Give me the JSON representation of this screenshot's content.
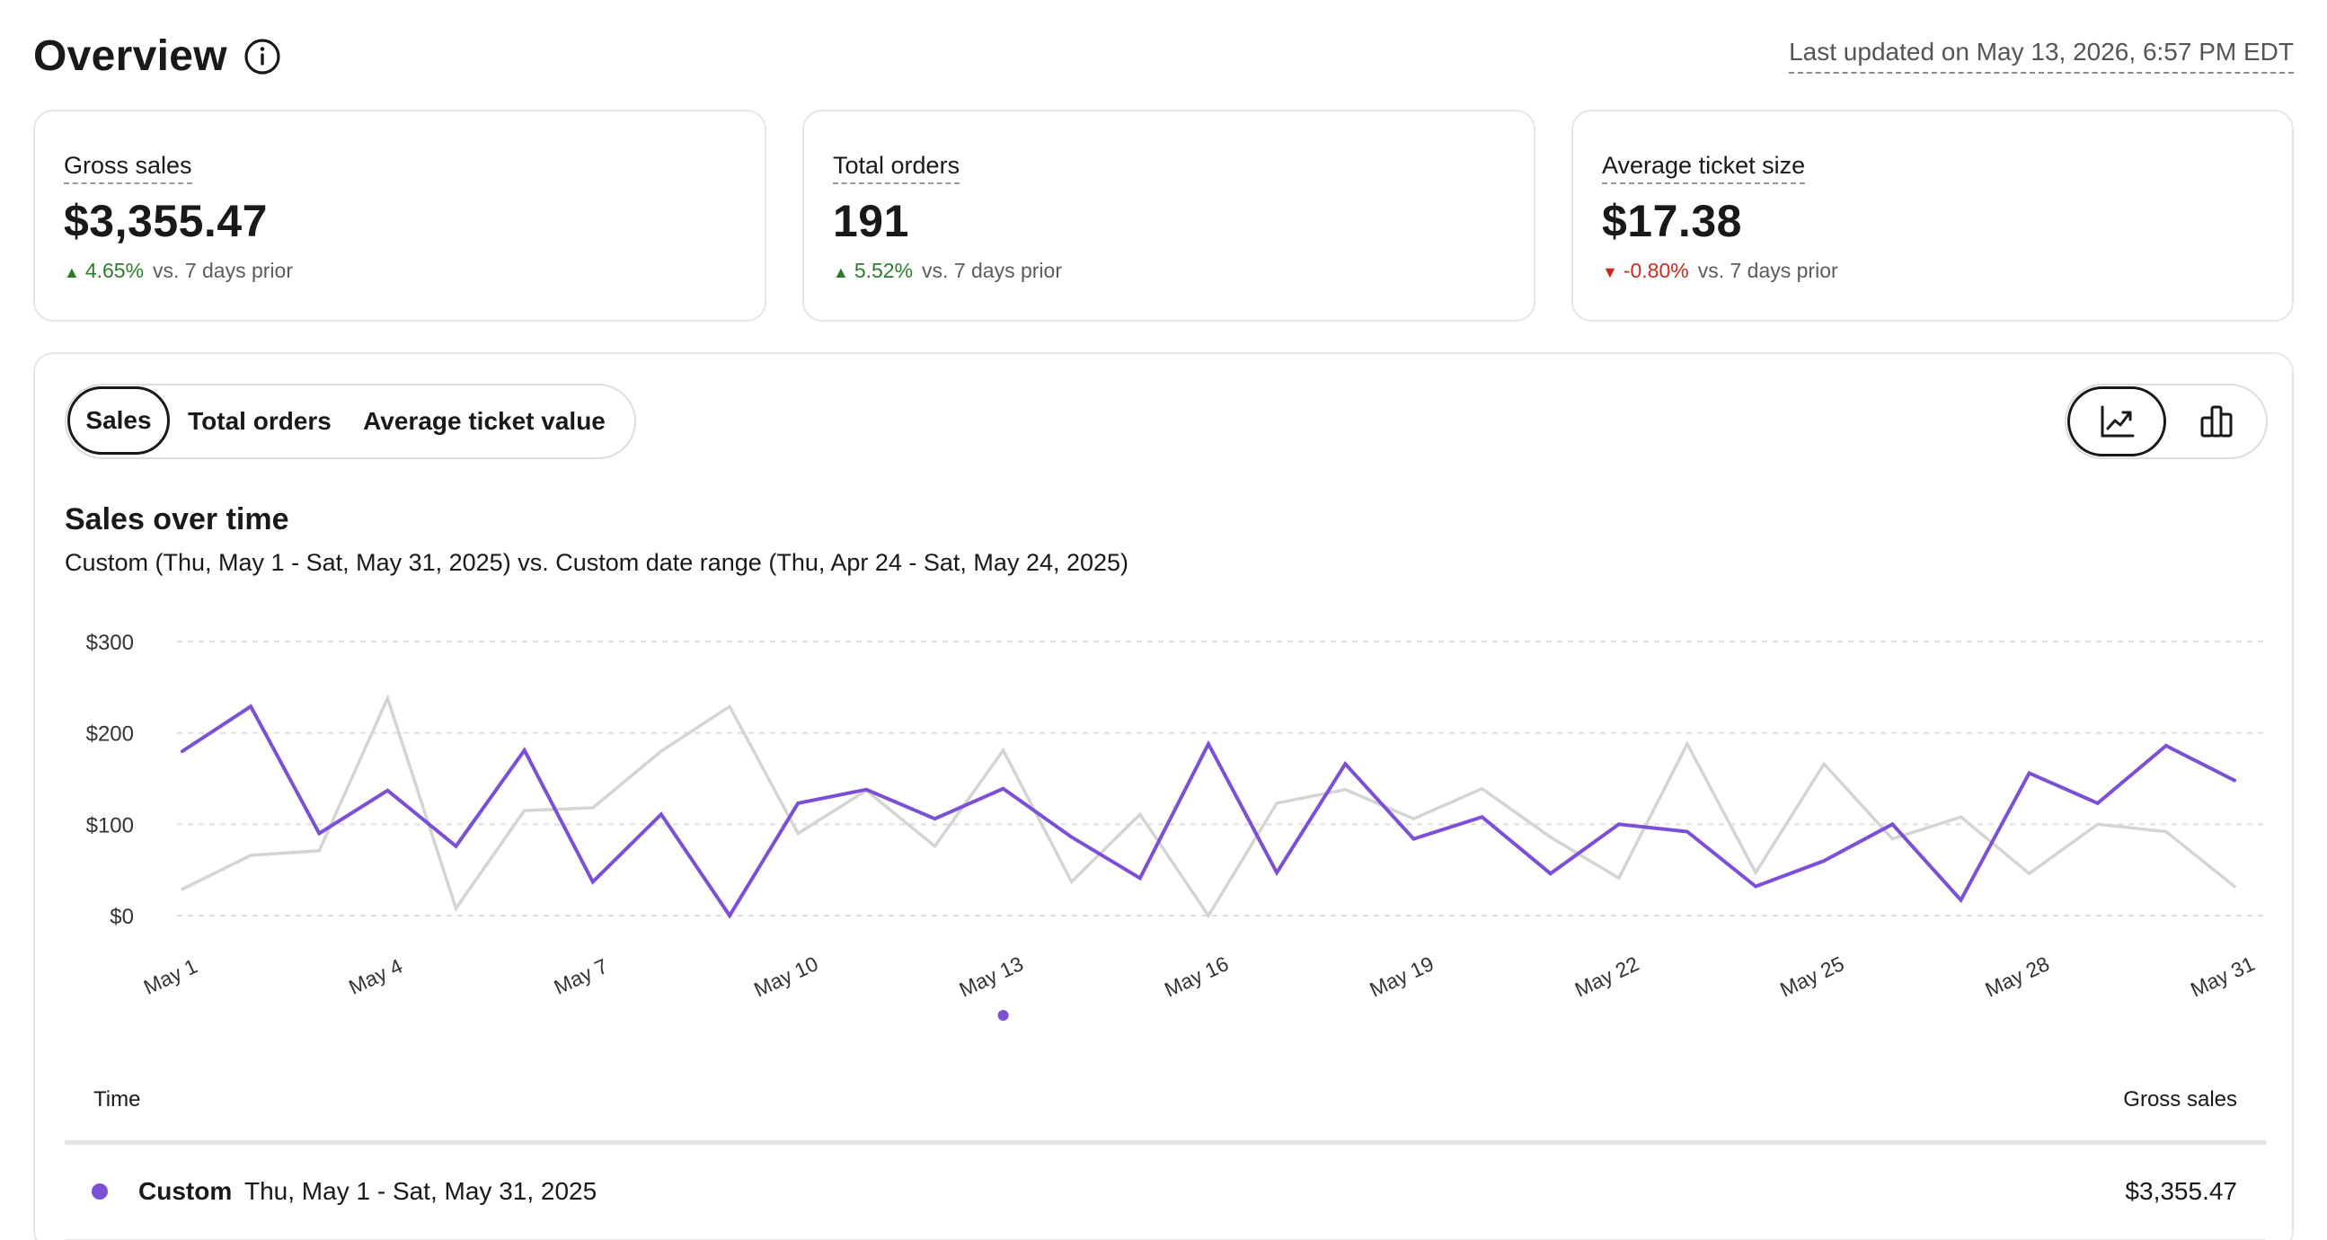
{
  "header": {
    "title": "Overview",
    "last_updated": "Last updated on May 13, 2026, 6:57 PM EDT"
  },
  "kpis": [
    {
      "label": "Gross sales",
      "value": "$3,355.47",
      "delta": "4.65%",
      "direction": "up",
      "compare": "vs. 7 days prior"
    },
    {
      "label": "Total orders",
      "value": "191",
      "delta": "5.52%",
      "direction": "up",
      "compare": "vs. 7 days prior"
    },
    {
      "label": "Average ticket size",
      "value": "$17.38",
      "delta": "-0.80%",
      "direction": "down",
      "compare": "vs. 7 days prior"
    }
  ],
  "tabs": {
    "sales": "Sales",
    "total_orders": "Total orders",
    "average_ticket_value": "Average ticket value",
    "active": "Sales"
  },
  "view_toggle": {
    "line_icon": "line-chart-icon",
    "bar_icon": "bar-chart-icon",
    "active": "line"
  },
  "chart": {
    "title": "Sales over time",
    "subtitle": "Custom (Thu, May 1 - Sat, May 31, 2025) vs. Custom date range (Thu, Apr 24 - Sat, May 24, 2025)"
  },
  "chart_data": {
    "type": "line",
    "x": [
      "May 1",
      "May 2",
      "May 3",
      "May 4",
      "May 5",
      "May 6",
      "May 7",
      "May 8",
      "May 9",
      "May 10",
      "May 11",
      "May 12",
      "May 13",
      "May 14",
      "May 15",
      "May 16",
      "May 17",
      "May 18",
      "May 19",
      "May 20",
      "May 21",
      "May 22",
      "May 23",
      "May 24",
      "May 25",
      "May 26",
      "May 27",
      "May 28",
      "May 29",
      "May 30",
      "May 31"
    ],
    "x_tick_labels": [
      "May 1",
      "May 4",
      "May 7",
      "May 10",
      "May 13",
      "May 16",
      "May 19",
      "May 22",
      "May 25",
      "May 28",
      "May 31"
    ],
    "highlighted_tick": "May 13",
    "y_tick_labels": [
      "$0",
      "$100",
      "$200",
      "$300"
    ],
    "ylim": [
      0,
      300
    ],
    "grid": true,
    "colors": {
      "current": "#7b4fd6",
      "prior": "#d4d4d4",
      "grid": "#dedede"
    },
    "series": [
      {
        "key": "current",
        "values": [
          180,
          229,
          90,
          137,
          76,
          181,
          37,
          111,
          0,
          123,
          138,
          106,
          139,
          86,
          41,
          188,
          47,
          166,
          84,
          108,
          46,
          100,
          92,
          32,
          60,
          100,
          17,
          156,
          123,
          186,
          148
        ]
      },
      {
        "key": "prior",
        "values": [
          29,
          66,
          71,
          238,
          8,
          115,
          118,
          180,
          229,
          90,
          137,
          76,
          181,
          37,
          111,
          0,
          123,
          138,
          106,
          139,
          86,
          41,
          188,
          47,
          166,
          84,
          108,
          46,
          100,
          92,
          32
        ]
      }
    ]
  },
  "table": {
    "col_time": "Time",
    "col_sales": "Gross sales",
    "rows": [
      {
        "name": "Custom",
        "range": "Thu, May 1 - Sat, May 31, 2025",
        "amount": "$3,355.47",
        "color": "#7b4fd6"
      }
    ]
  }
}
